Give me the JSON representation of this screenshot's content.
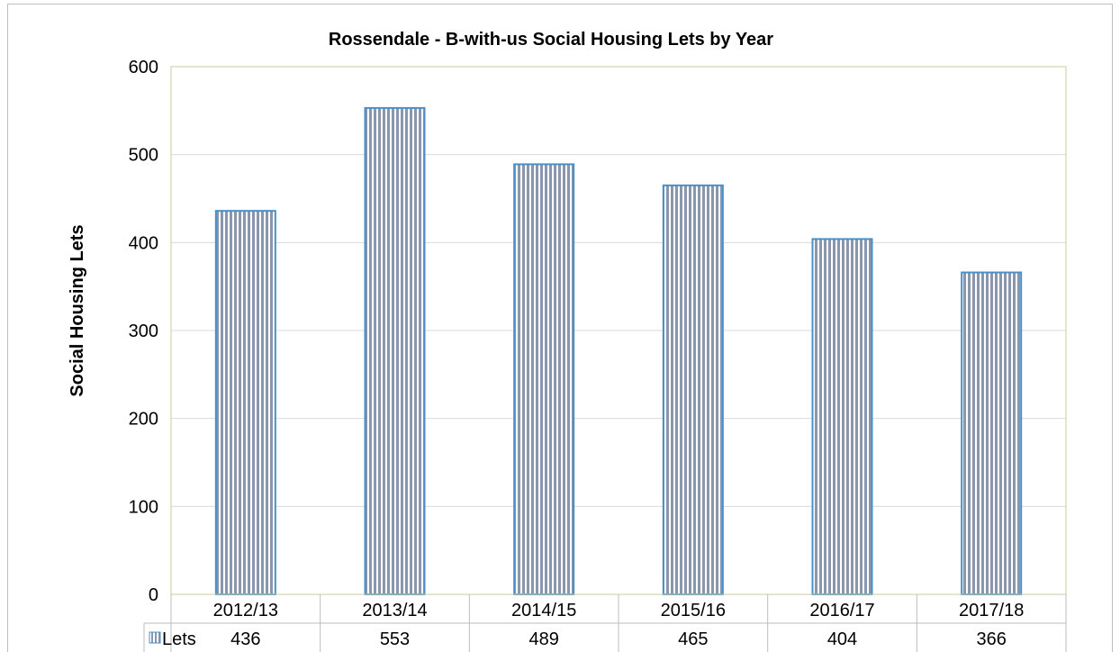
{
  "chart_data": {
    "type": "bar",
    "title": "Rossendale - B-with-us Social Housing Lets by Year",
    "xlabel": "",
    "ylabel": "Social Housing Lets",
    "categories": [
      "2012/13",
      "2013/14",
      "2014/15",
      "2015/16",
      "2016/17",
      "2017/18"
    ],
    "series": [
      {
        "name": "Lets",
        "values": [
          436,
          553,
          489,
          465,
          404,
          366
        ]
      }
    ],
    "ylim": [
      0,
      600
    ],
    "yticks": [
      "0",
      "100",
      "200",
      "300",
      "400",
      "500",
      "600"
    ],
    "grid": true,
    "legend": "data-table-left",
    "data_table": {
      "row_label": "Lets",
      "values": [
        "436",
        "553",
        "489",
        "465",
        "404",
        "366"
      ]
    },
    "colors": {
      "bar_fill": "#8a96ac",
      "bar_stripe": "#ffffff",
      "bar_border": "#4a90c8",
      "gridline": "#d9d9d9",
      "plot_border": "#c8cca0",
      "table_border": "#bdbdbd"
    }
  }
}
